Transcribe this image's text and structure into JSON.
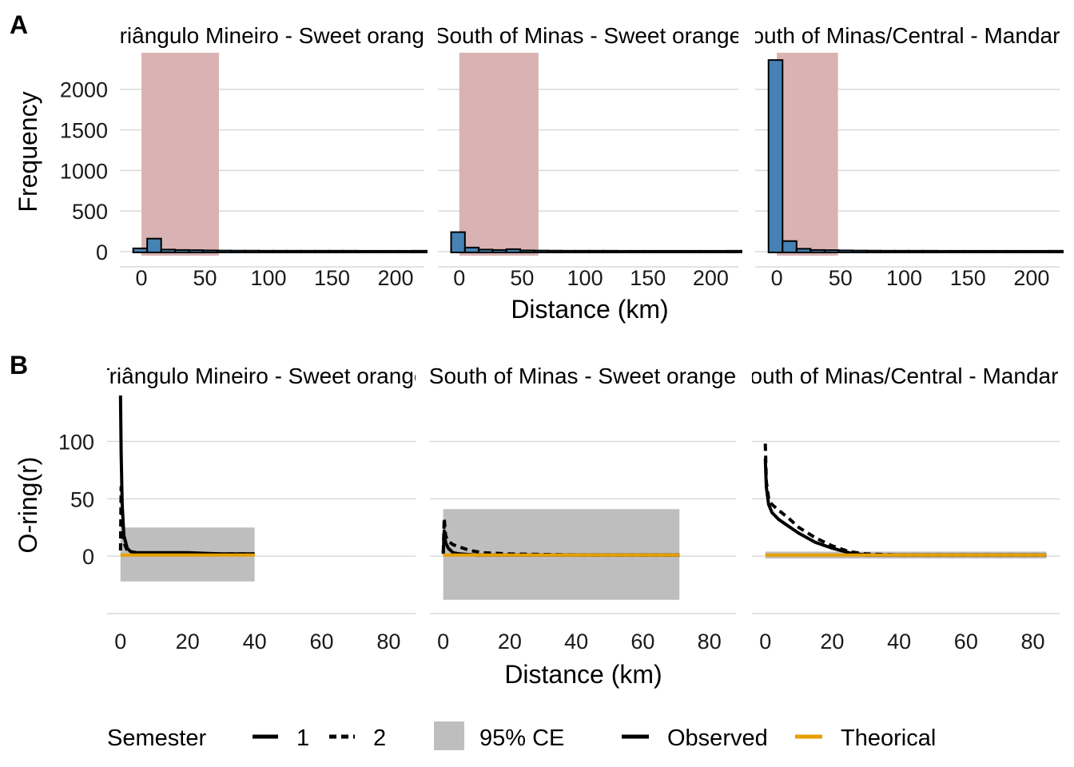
{
  "figure": {
    "panel_a_label": "A",
    "panel_b_label": "B"
  },
  "colors": {
    "hist_bar": "#4682B4",
    "hist_bar_edge": "#000000",
    "highlight_band": "#D9B3B3",
    "envelope": "#BEBEBE",
    "observed": "#000000",
    "theoretical": "#E69F00",
    "grid": "#D9D9D9"
  },
  "chart_data": [
    {
      "type": "bar",
      "panel": "A",
      "facets": [
        "Triângulo Mineiro - Sweet orange",
        "South of Minas - Sweet orange",
        "South of Minas/Central - Mandarin"
      ],
      "xlabel": "Distance (km)",
      "ylabel": "Frequency",
      "xlim": [
        -17,
        222
      ],
      "ylim": [
        -50,
        2450
      ],
      "xticks": [
        0,
        50,
        100,
        150,
        200
      ],
      "yticks": [
        0,
        500,
        1000,
        1500,
        2000
      ],
      "grid": true,
      "bin_width": 11,
      "bins_x_center": [
        -1,
        10,
        21,
        32,
        43,
        54,
        65,
        76,
        87,
        98,
        109,
        120,
        131,
        142,
        153,
        164,
        175,
        186,
        197,
        208,
        219
      ],
      "series": [
        {
          "facet": "Triângulo Mineiro - Sweet orange",
          "counts": [
            30,
            150,
            15,
            10,
            8,
            5,
            3,
            2,
            2,
            1,
            1,
            1,
            1,
            1,
            1,
            1,
            0,
            0,
            0,
            0,
            1
          ],
          "band": [
            0,
            61
          ]
        },
        {
          "facet": "South of Minas - Sweet orange",
          "counts": [
            230,
            40,
            15,
            10,
            20,
            5,
            3,
            2,
            1,
            1,
            1,
            1,
            0,
            0,
            0,
            0,
            0,
            0,
            0,
            0,
            1
          ],
          "band": [
            0,
            63
          ]
        },
        {
          "facet": "South of Minas/Central - Mandarin",
          "counts": [
            2350,
            120,
            25,
            10,
            8,
            5,
            3,
            2,
            1,
            1,
            1,
            1,
            0,
            0,
            0,
            0,
            0,
            0,
            0,
            0,
            1
          ],
          "band": [
            0,
            48
          ]
        }
      ]
    },
    {
      "type": "line",
      "panel": "B",
      "facets": [
        "Triângulo Mineiro - Sweet orange",
        "South of Minas - Sweet orange",
        "South of Minas/Central - Mandarin"
      ],
      "xlabel": "Distance (km)",
      "ylabel": "O-ring(r)",
      "xlim": [
        -4,
        88
      ],
      "ylim": [
        -50,
        140
      ],
      "xticks": [
        0,
        20,
        40,
        60,
        80
      ],
      "yticks": [
        0,
        50,
        100
      ],
      "grid": true,
      "envelope_label": "95% CE",
      "facets_data": [
        {
          "envelope": {
            "x": [
              0,
              40
            ],
            "lower": -22,
            "upper": 25
          },
          "theoretical": {
            "x": [
              0,
              40
            ],
            "y": 1
          },
          "observed": [
            {
              "semester": "1",
              "x": [
                0,
                0.2,
                0.5,
                1,
                2,
                3,
                5,
                10,
                20,
                30,
                40
              ],
              "y": [
                140,
                90,
                45,
                18,
                7,
                4,
                3,
                3,
                3,
                2,
                2
              ]
            },
            {
              "semester": "2",
              "x": [
                0,
                0.2,
                0.5,
                1,
                2,
                3,
                5,
                10,
                20,
                30,
                40
              ],
              "y": [
                5,
                60,
                30,
                12,
                5,
                3,
                2,
                2,
                2,
                2,
                2
              ]
            }
          ]
        },
        {
          "envelope": {
            "x": [
              0,
              71
            ],
            "lower": -38,
            "upper": 41
          },
          "theoretical": {
            "x": [
              0,
              71
            ],
            "y": 1
          },
          "observed": [
            {
              "semester": "1",
              "x": [
                0,
                0.3,
                0.7,
                1.5,
                3,
                5,
                10,
                20,
                40,
                71
              ],
              "y": [
                2,
                22,
                12,
                7,
                3,
                2,
                1,
                1,
                1,
                1
              ]
            },
            {
              "semester": "2",
              "x": [
                0,
                0.3,
                0.7,
                1.5,
                3,
                5,
                8,
                12,
                20,
                40,
                71
              ],
              "y": [
                3,
                33,
                18,
                13,
                10,
                8,
                5,
                3,
                2,
                1,
                1
              ]
            }
          ]
        },
        {
          "envelope": {
            "x": [
              0,
              84
            ],
            "lower": -2,
            "upper": 4
          },
          "theoretical": {
            "x": [
              0,
              84
            ],
            "y": 1
          },
          "observed": [
            {
              "semester": "1",
              "x": [
                0,
                0.3,
                1,
                2,
                4,
                7,
                10,
                15,
                20,
                25,
                30,
                40,
                60,
                84
              ],
              "y": [
                85,
                60,
                45,
                38,
                32,
                26,
                20,
                12,
                7,
                3,
                1,
                1,
                1,
                1
              ]
            },
            {
              "semester": "2",
              "x": [
                0,
                0.3,
                1,
                2,
                4,
                7,
                10,
                15,
                20,
                25,
                30,
                40,
                60,
                84
              ],
              "y": [
                98,
                65,
                50,
                45,
                40,
                33,
                25,
                16,
                9,
                4,
                2,
                1,
                1,
                1
              ]
            }
          ]
        }
      ]
    }
  ],
  "legend": {
    "semester_title": "Semester",
    "semester_1": "1",
    "semester_2": "2",
    "envelope": "95% CE",
    "observed": "Observed",
    "theoretical": "Theorical"
  }
}
